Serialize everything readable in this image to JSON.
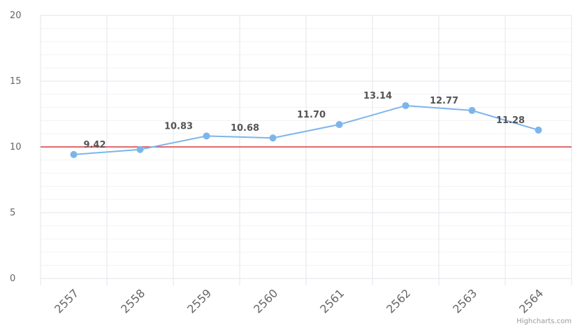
{
  "chart_data": {
    "type": "line",
    "categories": [
      "2557",
      "2558",
      "2559",
      "2560",
      "2561",
      "2562",
      "2563",
      "2564"
    ],
    "series": [
      {
        "color": "#7cb5ec",
        "values": [
          9.42,
          9.8,
          10.83,
          10.68,
          11.7,
          13.14,
          12.77,
          11.28
        ],
        "value_labels": [
          "9.42",
          null,
          "10.83",
          "10.68",
          "11.70",
          "13.14",
          "12.77",
          "11.28"
        ]
      }
    ],
    "ylim": [
      0,
      20
    ],
    "yticks": [
      0,
      5,
      10,
      15,
      20
    ],
    "grid": true,
    "minor_grid_interval": 1,
    "plot_line": {
      "value": 10,
      "color": "#d9383a"
    },
    "credits": "Highcharts.com"
  }
}
